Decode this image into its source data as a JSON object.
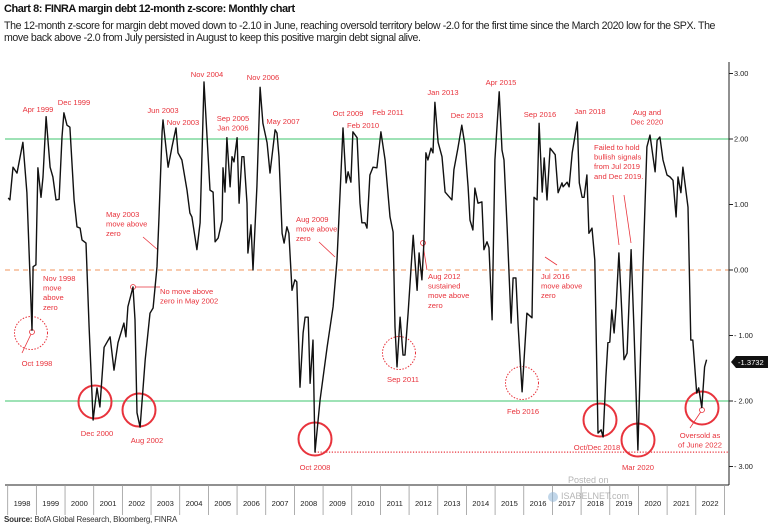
{
  "header": {
    "title": "Chart 8: FINRA margin debt 12-month  z-score: Monthly chart",
    "description_lines": [
      "The 12-month z-score for margin debt moved down to -2.10 in June, reaching oversold territory below -2.0 for the first time since the March 2020 low for the SPX. The",
      "move back above -2.0 from July persisted in August to keep this positive margin debt signal alive."
    ]
  },
  "chart_data": {
    "type": "line",
    "title": "Chart 8: FINRA margin debt 12-month  z-score: Monthly chart",
    "xlabel": "",
    "ylabel": "",
    "xlim": [
      1998,
      2023
    ],
    "ylim": [
      -3.2,
      3.2
    ],
    "y_axis_side": "right",
    "grid": false,
    "x_tick_labels": [
      "1998",
      "1999",
      "2000",
      "2001",
      "2002",
      "2003",
      "2004",
      "2005",
      "2006",
      "2007",
      "2008",
      "2009",
      "2010",
      "2011",
      "2012",
      "2013",
      "2014",
      "2015",
      "2016",
      "2017",
      "2018",
      "2019",
      "2020",
      "2021",
      "2022"
    ],
    "y_ticks": [
      3,
      2,
      1,
      0,
      -1,
      -2,
      -3
    ],
    "y_tick_labels": [
      "3.00",
      "2.00",
      "1.00",
      "0.00",
      "- 1.00",
      "- 2.00",
      "- 3.00"
    ],
    "reference_lines": [
      {
        "value": 2,
        "style": "solid",
        "color": "#3cc46e"
      },
      {
        "value": -2,
        "style": "solid",
        "color": "#3cc46e"
      },
      {
        "value": 0,
        "style": "dashed",
        "color": "#f0955e"
      },
      {
        "value": -2.78,
        "style": "dotted",
        "color": "#e8333c",
        "from": 2008.79
      }
    ],
    "last_value_label": "-1.3732",
    "line_color": "#111111",
    "annotation_color": "#e8333c",
    "series": [
      {
        "x": [
          1997.95,
          1998.01,
          1998.12,
          1998.26,
          1998.47,
          1998.61,
          1998.79,
          1998.83,
          1998.93,
          1999.0,
          1999.11,
          1999.18,
          1999.29,
          1999.43,
          1999.53,
          1999.64,
          1999.75,
          1999.85,
          1999.92,
          2000.03,
          2000.13,
          2000.28,
          2000.38,
          2000.49,
          2000.56,
          2000.7,
          2000.81,
          2000.95,
          2001.09,
          2001.19,
          2001.34,
          2001.55,
          2001.69,
          2001.83,
          2002.04,
          2002.11,
          2002.18,
          2002.36,
          2002.43,
          2002.5,
          2002.61,
          2002.79,
          2002.96,
          2003.07,
          2003.21,
          2003.28,
          2003.39,
          2003.42,
          2003.6,
          2003.74,
          2003.88,
          2003.95,
          2004.09,
          2004.27,
          2004.37,
          2004.44,
          2004.62,
          2004.73,
          2004.87,
          2005.08,
          2005.19,
          2005.26,
          2005.37,
          2005.51,
          2005.54,
          2005.61,
          2005.68,
          2005.79,
          2005.86,
          2005.93,
          2006.04,
          2006.11,
          2006.21,
          2006.28,
          2006.39,
          2006.42,
          2006.53,
          2006.6,
          2006.74,
          2006.85,
          2006.95,
          2007.1,
          2007.2,
          2007.38,
          2007.45,
          2007.52,
          2007.63,
          2007.7,
          2007.8,
          2007.87,
          2007.98,
          2008.08,
          2008.15,
          2008.26,
          2008.37,
          2008.44,
          2008.55,
          2008.62,
          2008.72,
          2008.79,
          2008.97,
          2009.22,
          2009.43,
          2009.57,
          2009.68,
          2009.78,
          2009.89,
          2009.96,
          2010.06,
          2010.13,
          2010.28,
          2010.38,
          2010.45,
          2010.56,
          2010.63,
          2010.73,
          2010.84,
          2010.98,
          2011.12,
          2011.27,
          2011.44,
          2011.55,
          2011.62,
          2011.69,
          2011.8,
          2011.9,
          2011.97,
          2012.08,
          2012.26,
          2012.4,
          2012.47,
          2012.57,
          2012.64,
          2012.71,
          2012.78,
          2012.89,
          2012.96,
          2013.03,
          2013.14,
          2013.28,
          2013.39,
          2013.63,
          2013.7,
          2013.84,
          2013.98,
          2014.09,
          2014.2,
          2014.27,
          2014.37,
          2014.44,
          2014.55,
          2014.69,
          2014.76,
          2014.87,
          2014.94,
          2015.05,
          2015.15,
          2015.3,
          2015.4,
          2015.47,
          2015.58,
          2015.72,
          2015.79,
          2015.89,
          2015.97,
          2016.11,
          2016.28,
          2016.46,
          2016.53,
          2016.64,
          2016.71,
          2016.82,
          2016.89,
          2016.99,
          2017.1,
          2017.28,
          2017.38,
          2017.52,
          2017.56,
          2017.7,
          2017.77,
          2017.88,
          2018.06,
          2018.13,
          2018.23,
          2018.3,
          2018.4,
          2018.47,
          2018.58,
          2018.68,
          2018.79,
          2018.9,
          2018.97,
          2019.07,
          2019.14,
          2019.21,
          2019.28,
          2019.36,
          2019.43,
          2019.53,
          2019.6,
          2019.71,
          2019.82,
          2019.96,
          2020.06,
          2020.2,
          2020.38,
          2020.52,
          2020.63,
          2020.81,
          2020.88,
          2020.98,
          2021.09,
          2021.23,
          2021.34,
          2021.44,
          2021.55,
          2021.62,
          2021.72,
          2021.79,
          2021.97,
          2022.07,
          2022.14,
          2022.28,
          2022.35,
          2022.46,
          2022.56,
          2022.63
        ],
        "y": [
          1.1,
          1.07,
          1.57,
          1.48,
          1.95,
          1.18,
          -0.92,
          0.05,
          0.08,
          1.56,
          1.11,
          1.42,
          2.34,
          1.57,
          1.42,
          1.07,
          1.08,
          2.03,
          2.4,
          2.21,
          2.18,
          1.07,
          0.66,
          0.64,
          0.46,
          0.41,
          -0.87,
          -2.29,
          -1.8,
          -2.09,
          -1.18,
          -1.02,
          -1.53,
          -1.11,
          -0.81,
          -1.02,
          -0.56,
          -0.26,
          -0.76,
          -2.18,
          -2.4,
          -1.37,
          -0.66,
          -0.58,
          0.05,
          0.81,
          2.11,
          2.29,
          1.57,
          1.88,
          2.17,
          1.79,
          1.68,
          1.22,
          0.87,
          0.81,
          0.31,
          0.72,
          2.87,
          1.22,
          1.19,
          0.43,
          0.49,
          0.76,
          1.56,
          1.19,
          2.02,
          1.27,
          1.73,
          1.65,
          2.02,
          1.02,
          1.73,
          1.73,
          1.02,
          0.26,
          0.69,
          0.0,
          1.27,
          2.79,
          2.24,
          1.94,
          1.48,
          2.14,
          2.09,
          1.73,
          0.56,
          0.41,
          0.66,
          0.56,
          -0.31,
          -0.15,
          -0.18,
          -1.79,
          -0.96,
          -0.72,
          -0.72,
          -1.73,
          -1.07,
          -2.78,
          -1.98,
          -1.18,
          -0.56,
          0.15,
          1.18,
          2.17,
          1.33,
          1.5,
          1.34,
          2.11,
          2.02,
          1.02,
          0.72,
          0.72,
          0.64,
          1.45,
          1.57,
          1.56,
          2.11,
          1.68,
          0.81,
          0.58,
          -0.87,
          -1.48,
          -0.72,
          -1.3,
          -1.3,
          -0.66,
          0.53,
          -0.31,
          0.26,
          -0.15,
          0.41,
          1.79,
          1.68,
          1.86,
          1.79,
          2.56,
          1.95,
          1.73,
          1.19,
          1.07,
          1.53,
          1.86,
          2.21,
          1.91,
          1.27,
          0.76,
          0.61,
          1.25,
          1.02,
          1.04,
          0.31,
          0.43,
          0.34,
          -0.76,
          1.68,
          2.72,
          1.83,
          1.68,
          0.66,
          -0.81,
          -0.12,
          -0.12,
          -0.87,
          -1.86,
          -0.66,
          -0.73,
          1.11,
          1.07,
          2.24,
          1.19,
          1.71,
          1.07,
          1.86,
          1.76,
          1.18,
          1.33,
          1.27,
          1.34,
          1.27,
          1.79,
          2.26,
          1.33,
          1.11,
          1.11,
          1.45,
          0.56,
          0.64,
          0.15,
          -2.49,
          -2.44,
          -2.55,
          -1.63,
          -1.11,
          -1.1,
          -0.61,
          -0.96,
          -0.56,
          0.26,
          -0.35,
          -1.37,
          -1.27,
          0.31,
          -0.87,
          -2.75,
          0.05,
          1.88,
          2.06,
          1.5,
          1.98,
          2.03,
          1.68,
          1.45,
          1.42,
          1.37,
          0.81,
          1.42,
          1.18,
          1.57,
          0.96,
          -1.07,
          -1.07,
          -1.88,
          -1.8,
          -2.1,
          -1.48,
          -1.37
        ]
      }
    ],
    "annotations": [
      {
        "text": [
          "Apr 1999"
        ]
      },
      {
        "text": [
          "Dec 1999"
        ]
      },
      {
        "text": [
          "Nov 1998",
          "move",
          "above",
          "zero"
        ]
      },
      {
        "text": [
          "Oct 1998"
        ]
      },
      {
        "text": [
          "Dec 2000"
        ]
      },
      {
        "text": [
          "May 2003",
          "move above",
          "zero"
        ]
      },
      {
        "text": [
          "No move above",
          "zero in May 2002"
        ]
      },
      {
        "text": [
          "Aug 2002"
        ]
      },
      {
        "text": [
          "Jun 2003"
        ]
      },
      {
        "text": [
          "Nov 2003"
        ]
      },
      {
        "text": [
          "Nov 2004"
        ]
      },
      {
        "text": [
          "Sep 2005",
          "Jan 2006"
        ]
      },
      {
        "text": [
          "Nov 2006"
        ]
      },
      {
        "text": [
          "May 2007"
        ]
      },
      {
        "text": [
          "Aug 2009",
          "move above",
          "zero"
        ]
      },
      {
        "text": [
          "Oct 2008"
        ]
      },
      {
        "text": [
          "Oct 2009"
        ]
      },
      {
        "text": [
          "Feb 2010"
        ]
      },
      {
        "text": [
          "Feb 2011"
        ]
      },
      {
        "text": [
          "Sep 2011"
        ]
      },
      {
        "text": [
          "Aug 2012",
          "sustained",
          "move above",
          "zero"
        ]
      },
      {
        "text": [
          "Jan 2013"
        ]
      },
      {
        "text": [
          "Dec 2013"
        ]
      },
      {
        "text": [
          "Apr 2015"
        ]
      },
      {
        "text": [
          "Feb 2016"
        ]
      },
      {
        "text": [
          "Sep 2016"
        ]
      },
      {
        "text": [
          "Jul 2016",
          "move above",
          "zero"
        ]
      },
      {
        "text": [
          "Jan 2018"
        ]
      },
      {
        "text": [
          "Failed to hold",
          "bullish signals",
          "from Jul 2019",
          "and Dec 2019."
        ]
      },
      {
        "text": [
          "Oct/Dec 2018"
        ]
      },
      {
        "text": [
          "Aug and",
          "Dec 2020"
        ]
      },
      {
        "text": [
          "Mar 2020"
        ]
      },
      {
        "text": [
          "Oversold as",
          "of June 2022"
        ]
      }
    ],
    "highlight_circles": [
      {
        "label": "Oct 1998",
        "style": "dotted"
      },
      {
        "label": "Sep 2011",
        "style": "dotted"
      },
      {
        "label": "Feb 2016",
        "style": "dotted"
      },
      {
        "label": "Dec 2000",
        "style": "solid"
      },
      {
        "label": "Aug 2002",
        "style": "solid"
      },
      {
        "label": "Oct 2008",
        "style": "solid"
      },
      {
        "label": "Oct/Dec 2018",
        "style": "solid"
      },
      {
        "label": "Mar 2020",
        "style": "solid"
      },
      {
        "label": "June 2022",
        "style": "solid"
      }
    ]
  },
  "footer": {
    "source_label": "Source:",
    "source_text": "BofA Global Research, Bloomberg, FINRA",
    "watermark_line1": "Posted on",
    "watermark_line2": "ISABELNET.com"
  }
}
